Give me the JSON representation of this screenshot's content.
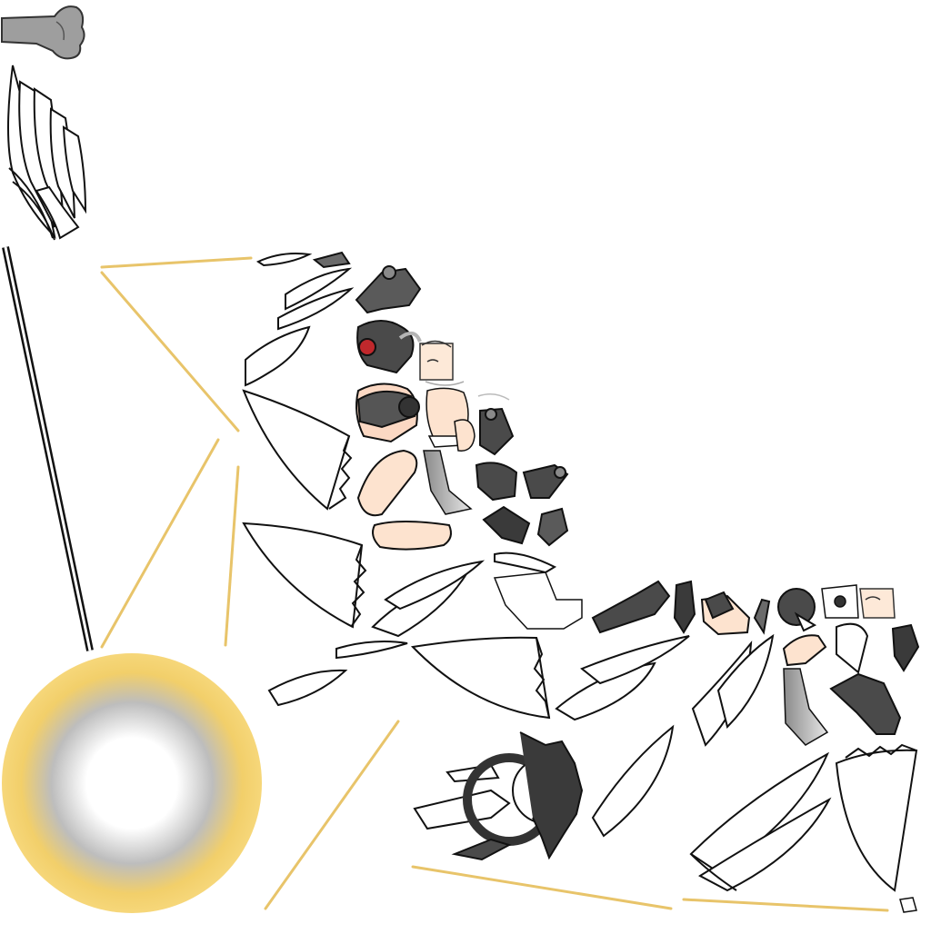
{
  "sheet": {
    "kind": "sprite-atlas",
    "sprite_count": 64
  },
  "palette": {
    "outline": "#111111",
    "armor_dark": "#4a4a4a",
    "armor_mid": "#7a7a7a",
    "armor_light": "#b5b5b5",
    "skin": "#fde3cf",
    "gold": "#f2cf6a",
    "gold_light": "#ffe7a6",
    "cloth_gray": "#9c9c9c",
    "feather": "#ffffff",
    "gem_red": "#c0282c"
  },
  "sprites": [
    {
      "id": "grey-arm-fist",
      "icon": "fist-icon"
    },
    {
      "id": "large-wing-left",
      "icon": "wing-icon"
    },
    {
      "id": "staff-pole",
      "icon": "staff-icon"
    },
    {
      "id": "glow-orb",
      "icon": "orb-icon"
    },
    {
      "id": "gold-light-streaks",
      "icon": "light-ray-icon"
    },
    {
      "id": "armor-pieces",
      "icon": "armor-icon"
    },
    {
      "id": "helmet-with-red-gem",
      "icon": "helmet-icon"
    },
    {
      "id": "face-parts",
      "icon": "face-icon"
    },
    {
      "id": "torso-and-legs",
      "icon": "body-icon"
    },
    {
      "id": "halo-weapon-ring",
      "icon": "halo-icon"
    },
    {
      "id": "feather-panels",
      "icon": "feather-icon"
    },
    {
      "id": "boots-and-gauntlets",
      "icon": "boot-icon"
    }
  ]
}
